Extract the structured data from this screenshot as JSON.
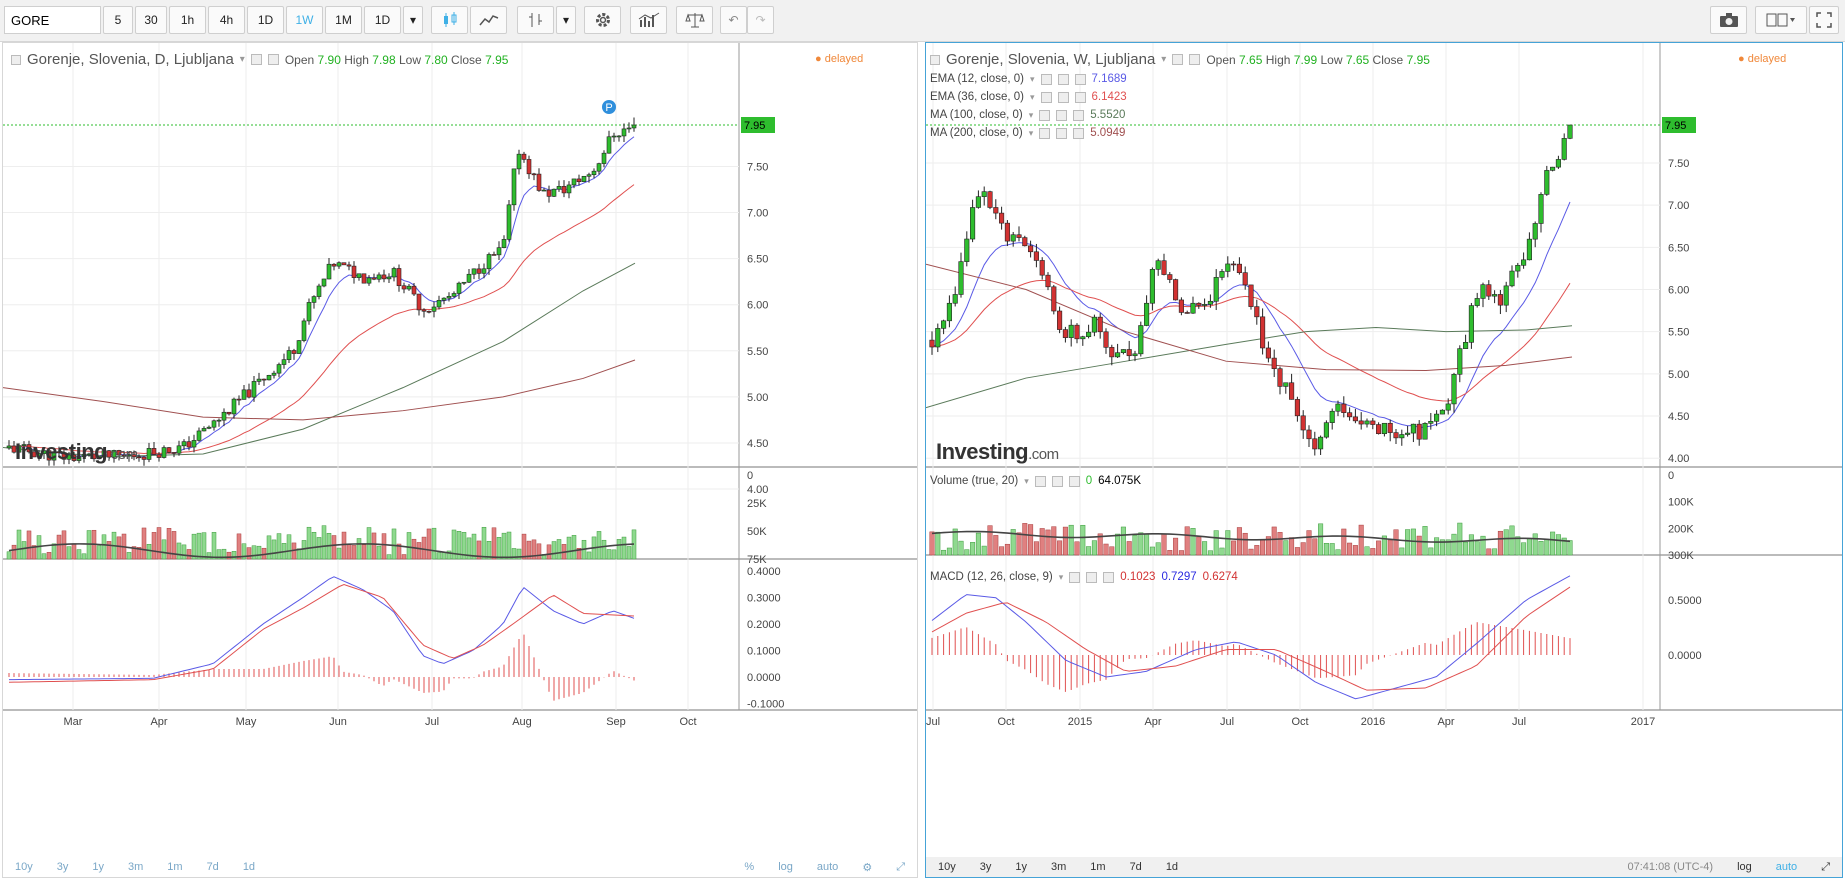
{
  "toolbar": {
    "symbol": "GORE",
    "intervals": [
      "5",
      "30",
      "1h",
      "4h",
      "1D",
      "1W",
      "1M",
      "1D"
    ],
    "active_interval": "1W"
  },
  "left": {
    "title": "Gorenje, Slovenia, D, Ljubljana",
    "open_label": "Open",
    "open": "7.90",
    "high_label": "High",
    "high": "7.98",
    "low_label": "Low",
    "low": "7.80",
    "close_label": "Close",
    "close": "7.95",
    "delayed": "delayed",
    "marker": "P",
    "last_price": "7.95",
    "price_ticks": [
      "7.50",
      "7.00",
      "6.50",
      "6.00",
      "5.50",
      "5.00",
      "4.50",
      "4.00"
    ],
    "volume_ticks": [
      "75K",
      "50K",
      "25K",
      "0"
    ],
    "macd_ticks": [
      "0.4000",
      "0.3000",
      "0.2000",
      "0.1000",
      "0.0000",
      "-0.1000"
    ],
    "x_ticks": [
      "Mar",
      "Apr",
      "May",
      "Jun",
      "Jul",
      "Aug",
      "Sep",
      "Oct"
    ],
    "logo": "Investing",
    "logo_suffix": ".com",
    "ranges": [
      "10y",
      "3y",
      "1y",
      "3m",
      "1m",
      "7d",
      "1d"
    ],
    "scale_opts": [
      "%",
      "log",
      "auto"
    ]
  },
  "right": {
    "title": "Gorenje, Slovenia, W, Ljubljana",
    "open_label": "Open",
    "open": "7.65",
    "high_label": "High",
    "high": "7.99",
    "low_label": "Low",
    "low": "7.65",
    "close_label": "Close",
    "close": "7.95",
    "delayed": "delayed",
    "last_price": "7.95",
    "indicators": [
      {
        "label": "EMA (12, close, 0)",
        "value": "7.1689",
        "color": "#5a5ae6"
      },
      {
        "label": "EMA (36, close, 0)",
        "value": "6.1423",
        "color": "#e05050"
      },
      {
        "label": "MA (100, close, 0)",
        "value": "5.5520",
        "color": "#5a7a5a"
      },
      {
        "label": "MA (200, close, 0)",
        "value": "5.0949",
        "color": "#a05050"
      }
    ],
    "price_ticks": [
      "7.50",
      "7.00",
      "6.50",
      "6.00",
      "5.50",
      "5.00",
      "4.50",
      "4.00"
    ],
    "volume_label": "Volume (true, 20)",
    "volume_val1": "0",
    "volume_val2": "64.075K",
    "volume_ticks": [
      "300K",
      "200K",
      "100K",
      "0"
    ],
    "macd_label": "MACD (12, 26, close, 9)",
    "macd_v1": "0.1023",
    "macd_v2": "0.7297",
    "macd_v3": "0.6274",
    "macd_ticks": [
      "0.5000",
      "0.0000"
    ],
    "x_ticks": [
      "Jul",
      "Oct",
      "2015",
      "Apr",
      "Jul",
      "Oct",
      "2016",
      "Apr",
      "Jul",
      "2017"
    ],
    "logo": "Investing",
    "logo_suffix": ".com",
    "ranges": [
      "10y",
      "3y",
      "1y",
      "3m",
      "1m",
      "7d",
      "1d"
    ],
    "time": "07:41:08 (UTC-4)",
    "scale_opts": [
      "log",
      "auto"
    ]
  },
  "colors": {
    "up": "#2ebd2e",
    "down": "#d23232",
    "ema_fast": "#5a5ae6",
    "ema_slow": "#e05050",
    "ma100": "#5a7a5a",
    "ma200": "#a05050",
    "accent": "#3fb0e6"
  }
}
